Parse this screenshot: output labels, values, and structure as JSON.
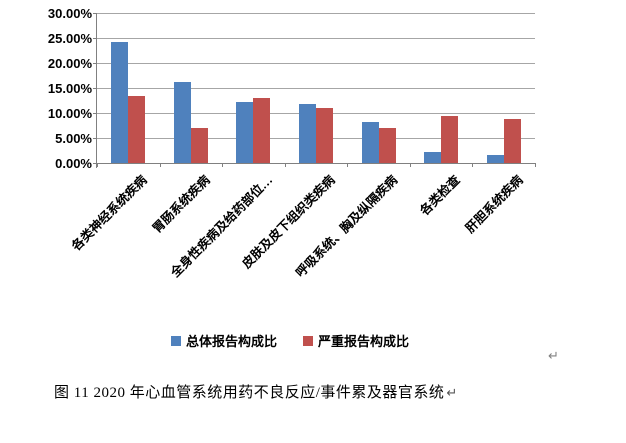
{
  "figure": {
    "caption": "图 11  2020 年心血管系统用药不良反应/事件累及器官系统",
    "caption_paragraph_mark": "↵",
    "floating_paragraph_mark": "↵"
  },
  "chart_data": {
    "type": "bar",
    "title": "",
    "xlabel": "",
    "ylabel": "",
    "categories": [
      "各类神经系统疾病",
      "胃肠系统疾病",
      "全身性疾病及给药部位…",
      "皮肤及皮下组织类疾病",
      "呼吸系统、胸及纵隔疾病",
      "各类检查",
      "肝胆系统疾病"
    ],
    "series": [
      {
        "name": "总体报告构成比",
        "color": "#4F81BD",
        "values": [
          24.3,
          16.3,
          12.2,
          11.9,
          8.2,
          2.3,
          1.7
        ]
      },
      {
        "name": "严重报告构成比",
        "color": "#C0504D",
        "values": [
          13.4,
          7.1,
          13.0,
          11.1,
          7.1,
          9.4,
          8.9
        ]
      }
    ],
    "ylim": [
      0,
      30
    ],
    "ytick_step": 5,
    "ytick_labels": [
      "0.00%",
      "5.00%",
      "10.00%",
      "15.00%",
      "20.00%",
      "25.00%",
      "30.00%"
    ],
    "grid": "horizontal",
    "legend_position": "bottom",
    "colors": {
      "axis": "#808080",
      "gridline": "#A6A6A6",
      "text": "#000000",
      "background": "#FFFFFF"
    }
  }
}
